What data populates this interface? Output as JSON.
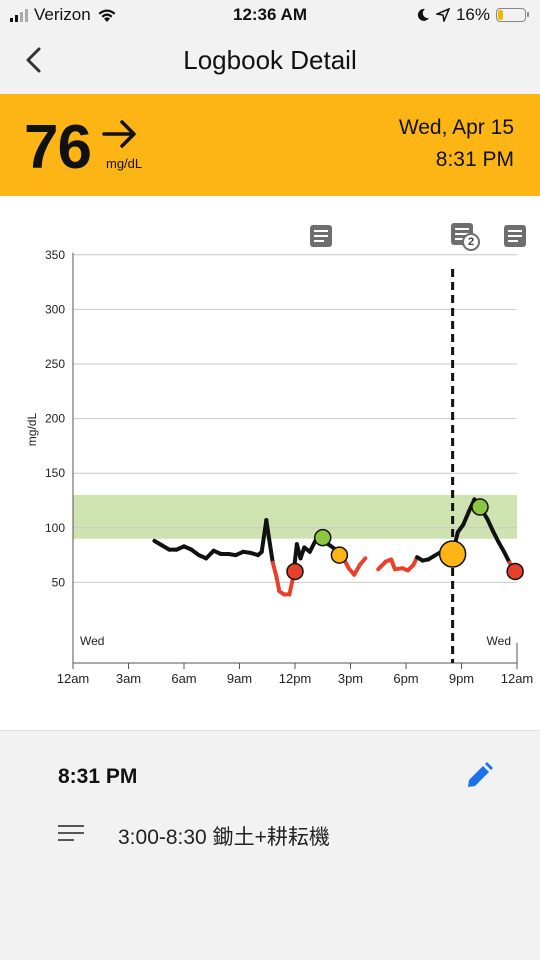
{
  "status_bar": {
    "carrier": "Verizon",
    "time": "12:36 AM",
    "battery": "16%"
  },
  "nav": {
    "title": "Logbook Detail",
    "back_icon": "chevron-left-icon"
  },
  "reading": {
    "value": "76",
    "trend_icon": "arrow-right-icon",
    "unit": "mg/dL",
    "date": "Wed, Apr 15",
    "time": "8:31 PM",
    "color": "#fcb514"
  },
  "chart": {
    "note_count_badge": "2",
    "start_label": "Wed",
    "end_label": "Wed"
  },
  "chart_data": {
    "type": "line",
    "ylabel": "mg/dL",
    "ylim": [
      0,
      350
    ],
    "yticks": [
      50,
      100,
      150,
      200,
      250,
      300,
      350
    ],
    "xlim": [
      0,
      24
    ],
    "xticks": [
      0,
      3,
      6,
      9,
      12,
      15,
      18,
      21,
      24
    ],
    "xtick_labels": [
      "12am",
      "3am",
      "6am",
      "9am",
      "12pm",
      "3pm",
      "6pm",
      "9pm",
      "12am"
    ],
    "target_range": [
      90,
      130
    ],
    "target_color": "#cfe3b0",
    "low_threshold": 70,
    "line_color": "#111111",
    "low_color": "#e8412b",
    "selected_time": 20.52,
    "series": [
      {
        "values": [
          [
            4.4,
            88
          ],
          [
            4.8,
            84
          ],
          [
            5.2,
            80
          ],
          [
            5.6,
            80
          ],
          [
            6.0,
            83
          ],
          [
            6.4,
            80
          ],
          [
            6.8,
            75
          ],
          [
            7.2,
            72
          ],
          [
            7.6,
            79
          ],
          [
            8.0,
            76
          ],
          [
            8.4,
            76
          ],
          [
            8.8,
            75
          ],
          [
            9.2,
            78
          ],
          [
            9.6,
            77
          ],
          [
            10.0,
            75
          ],
          [
            10.2,
            78
          ],
          [
            10.45,
            107
          ],
          [
            10.6,
            90
          ],
          [
            10.8,
            68
          ],
          [
            11.0,
            55
          ],
          [
            11.15,
            42
          ],
          [
            11.4,
            39
          ],
          [
            11.7,
            39
          ],
          [
            11.9,
            55
          ],
          [
            12.1,
            85
          ],
          [
            12.3,
            72
          ],
          [
            12.5,
            82
          ],
          [
            12.8,
            78
          ],
          [
            13.1,
            88
          ],
          [
            13.4,
            93
          ],
          [
            13.8,
            85
          ],
          [
            14.2,
            80
          ],
          [
            14.6,
            73
          ],
          [
            14.9,
            63
          ],
          [
            15.2,
            57
          ],
          [
            15.5,
            66
          ],
          [
            15.8,
            72
          ]
        ]
      },
      {
        "values": [
          [
            16.5,
            62
          ],
          [
            16.9,
            69
          ],
          [
            17.2,
            71
          ],
          [
            17.4,
            62
          ],
          [
            17.8,
            63
          ],
          [
            18.1,
            61
          ],
          [
            18.4,
            66
          ],
          [
            18.6,
            73
          ],
          [
            18.9,
            70
          ],
          [
            19.2,
            71
          ],
          [
            19.5,
            74
          ],
          [
            19.8,
            77
          ],
          [
            20.1,
            80
          ],
          [
            20.52,
            76
          ],
          [
            20.8,
            96
          ],
          [
            21.1,
            103
          ],
          [
            21.4,
            115
          ],
          [
            21.7,
            126
          ],
          [
            22.0,
            119
          ],
          [
            22.4,
            108
          ],
          [
            22.7,
            97
          ],
          [
            23.0,
            87
          ],
          [
            23.3,
            78
          ],
          [
            23.6,
            68
          ],
          [
            23.8,
            60
          ]
        ]
      }
    ],
    "markers": [
      {
        "x": 12.0,
        "y": 60,
        "color": "#e8412b"
      },
      {
        "x": 13.5,
        "y": 91,
        "color": "#8cc63f"
      },
      {
        "x": 14.4,
        "y": 75,
        "color": "#fcb514"
      },
      {
        "x": 20.52,
        "y": 76,
        "color": "#fcb514",
        "selected": true
      },
      {
        "x": 22.0,
        "y": 119,
        "color": "#8cc63f"
      },
      {
        "x": 23.9,
        "y": 60,
        "color": "#e8412b"
      }
    ],
    "note_times": [
      13.9,
      20.3,
      24.0
    ]
  },
  "detail": {
    "time": "8:31 PM",
    "note": "3:00-8:30 鋤土+耕耘機",
    "edit_icon": "pencil-icon",
    "notes_icon": "notes-lines-icon",
    "accent": "#1a73e8"
  }
}
